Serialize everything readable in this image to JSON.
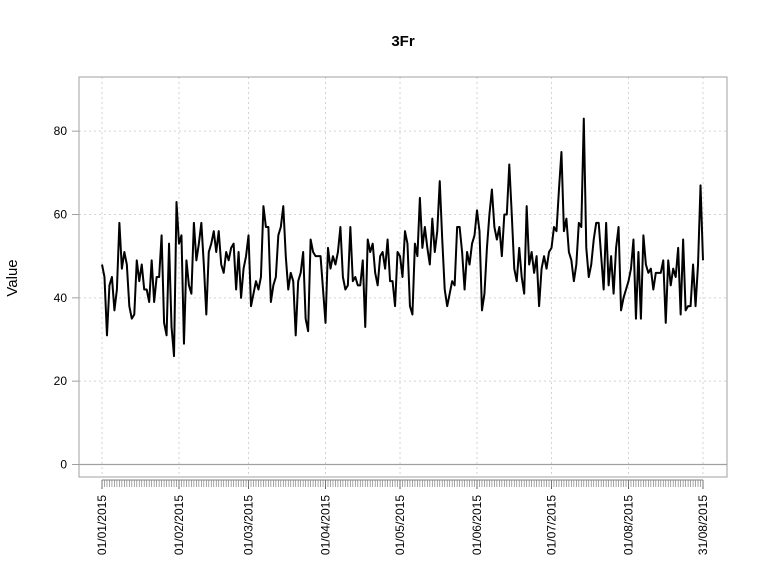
{
  "chart_data": {
    "type": "line",
    "title": "3Fr",
    "xlabel": "",
    "ylabel": "Value",
    "x_range": [
      "01/01/2015",
      "31/08/2015"
    ],
    "ylim": [
      -3,
      93
    ],
    "y_ticks": [
      0,
      20,
      40,
      60,
      80
    ],
    "x_ticks": [
      "01/01/2015",
      "01/02/2015",
      "01/03/2015",
      "01/04/2015",
      "01/05/2015",
      "01/06/2015",
      "01/07/2015",
      "01/08/2015",
      "31/08/2015"
    ],
    "x_tick_days": [
      0,
      31,
      59,
      90,
      120,
      151,
      181,
      212,
      242
    ],
    "grid": true,
    "reference_line_y": 0,
    "series": [
      {
        "color": "#000000",
        "values": [
          48,
          45,
          31,
          43,
          45,
          37,
          42,
          58,
          47,
          51,
          48,
          38,
          35,
          36,
          49,
          44,
          48,
          42,
          42,
          39,
          49,
          39,
          45,
          45,
          55,
          34,
          31,
          53,
          33,
          26,
          63,
          53,
          55,
          29,
          49,
          43,
          41,
          58,
          49,
          53,
          58,
          48,
          36,
          51,
          53,
          56,
          51,
          56,
          48,
          46,
          51,
          49,
          52,
          53,
          42,
          51,
          40,
          47,
          50,
          55,
          38,
          41,
          44,
          42,
          45,
          62,
          57,
          57,
          39,
          43,
          45,
          55,
          57,
          62,
          50,
          42,
          46,
          44,
          31,
          44,
          46,
          51,
          35,
          32,
          54,
          51,
          50,
          50,
          50,
          42,
          34,
          52,
          47,
          50,
          48,
          51,
          57,
          45,
          42,
          43,
          57,
          44,
          45,
          43,
          43,
          49,
          33,
          54,
          51,
          53,
          46,
          43,
          50,
          51,
          47,
          54,
          44,
          44,
          38,
          51,
          50,
          45,
          56,
          53,
          38,
          36,
          53,
          50,
          64,
          52,
          57,
          52,
          48,
          59,
          51,
          56,
          68,
          54,
          42,
          38,
          41,
          44,
          43,
          57,
          57,
          51,
          42,
          51,
          48,
          53,
          55,
          61,
          56,
          37,
          41,
          52,
          60,
          66,
          57,
          54,
          57,
          50,
          60,
          60,
          72,
          60,
          47,
          44,
          52,
          45,
          41,
          62,
          48,
          51,
          46,
          50,
          38,
          47,
          50,
          47,
          51,
          52,
          57,
          56,
          66,
          75,
          56,
          59,
          51,
          49,
          44,
          48,
          58,
          57,
          83,
          52,
          45,
          48,
          54,
          58,
          58,
          50,
          42,
          58,
          43,
          50,
          41,
          52,
          57,
          37,
          40,
          42,
          44,
          47,
          54,
          35,
          51,
          35,
          55,
          48,
          46,
          47,
          42,
          46,
          46,
          46,
          49,
          34,
          49,
          43,
          47,
          45,
          52,
          36,
          54,
          37,
          38,
          38,
          48,
          38,
          48,
          67,
          49
        ]
      }
    ]
  }
}
